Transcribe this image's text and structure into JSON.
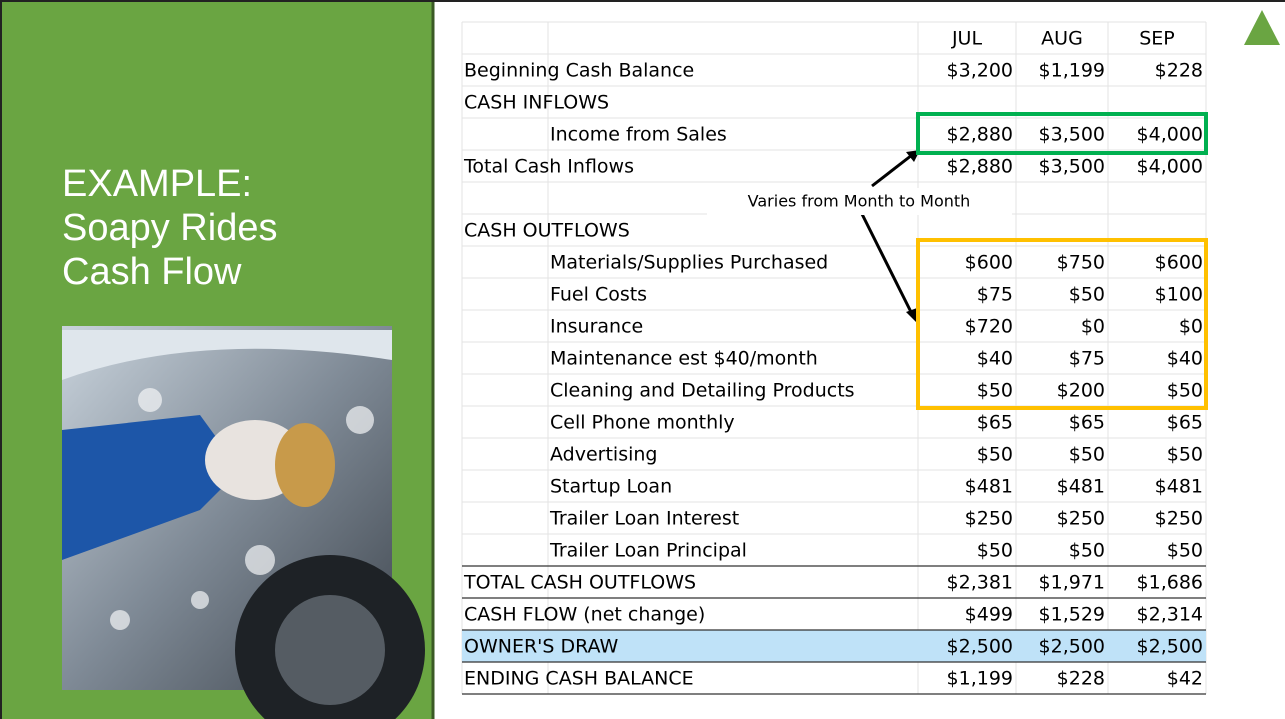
{
  "slide": {
    "title_line1": "EXAMPLE:",
    "title_line2": "Soapy Rides",
    "title_line3": "Cash Flow",
    "callout": "Varies from Month to Month",
    "table": {
      "columns": [
        "JUL",
        "AUG",
        "SEP"
      ],
      "rows": [
        {
          "label": "Beginning Cash Balance",
          "values": [
            "$3,200",
            "$1,199",
            "$228"
          ]
        },
        {
          "label": "CASH INFLOWS"
        },
        {
          "label": "Income from Sales",
          "indent": true,
          "values": [
            "$2,880",
            "$3,500",
            "$4,000"
          ]
        },
        {
          "label": "Total Cash Inflows",
          "values": [
            "$2,880",
            "$3,500",
            "$4,000"
          ]
        },
        {
          "label": "CASH OUTFLOWS"
        },
        {
          "label": "Materials/Supplies Purchased",
          "indent": true,
          "values": [
            "$600",
            "$750",
            "$600"
          ]
        },
        {
          "label": "Fuel Costs",
          "indent": true,
          "values": [
            "$75",
            "$50",
            "$100"
          ]
        },
        {
          "label": "Insurance",
          "indent": true,
          "values": [
            "$720",
            "$0",
            "$0"
          ]
        },
        {
          "label": "Maintenance est $40/month",
          "indent": true,
          "values": [
            "$40",
            "$75",
            "$40"
          ]
        },
        {
          "label": "Cleaning and Detailing Products",
          "indent": true,
          "values": [
            "$50",
            "$200",
            "$50"
          ]
        },
        {
          "label": "Cell Phone monthly",
          "indent": true,
          "values": [
            "$65",
            "$65",
            "$65"
          ]
        },
        {
          "label": "Advertising",
          "indent": true,
          "values": [
            "$50",
            "$50",
            "$50"
          ]
        },
        {
          "label": "Startup Loan",
          "indent": true,
          "values": [
            "$481",
            "$481",
            "$481"
          ]
        },
        {
          "label": "Trailer Loan Interest",
          "indent": true,
          "values": [
            "$250",
            "$250",
            "$250"
          ]
        },
        {
          "label": "Trailer Loan Principal",
          "indent": true,
          "values": [
            "$50",
            "$50",
            "$50"
          ]
        },
        {
          "label": "TOTAL CASH OUTFLOWS",
          "values": [
            "$2,381",
            "$1,971",
            "$1,686"
          ]
        },
        {
          "label": "CASH FLOW (net change)",
          "values": [
            "$499",
            "$1,529",
            "$2,314"
          ]
        },
        {
          "label": "OWNER'S DRAW",
          "values": [
            "$2,500",
            "$2,500",
            "$2,500"
          ]
        },
        {
          "label": "ENDING CASH BALANCE",
          "values": [
            "$1,199",
            "$228",
            "$42"
          ]
        }
      ]
    }
  }
}
